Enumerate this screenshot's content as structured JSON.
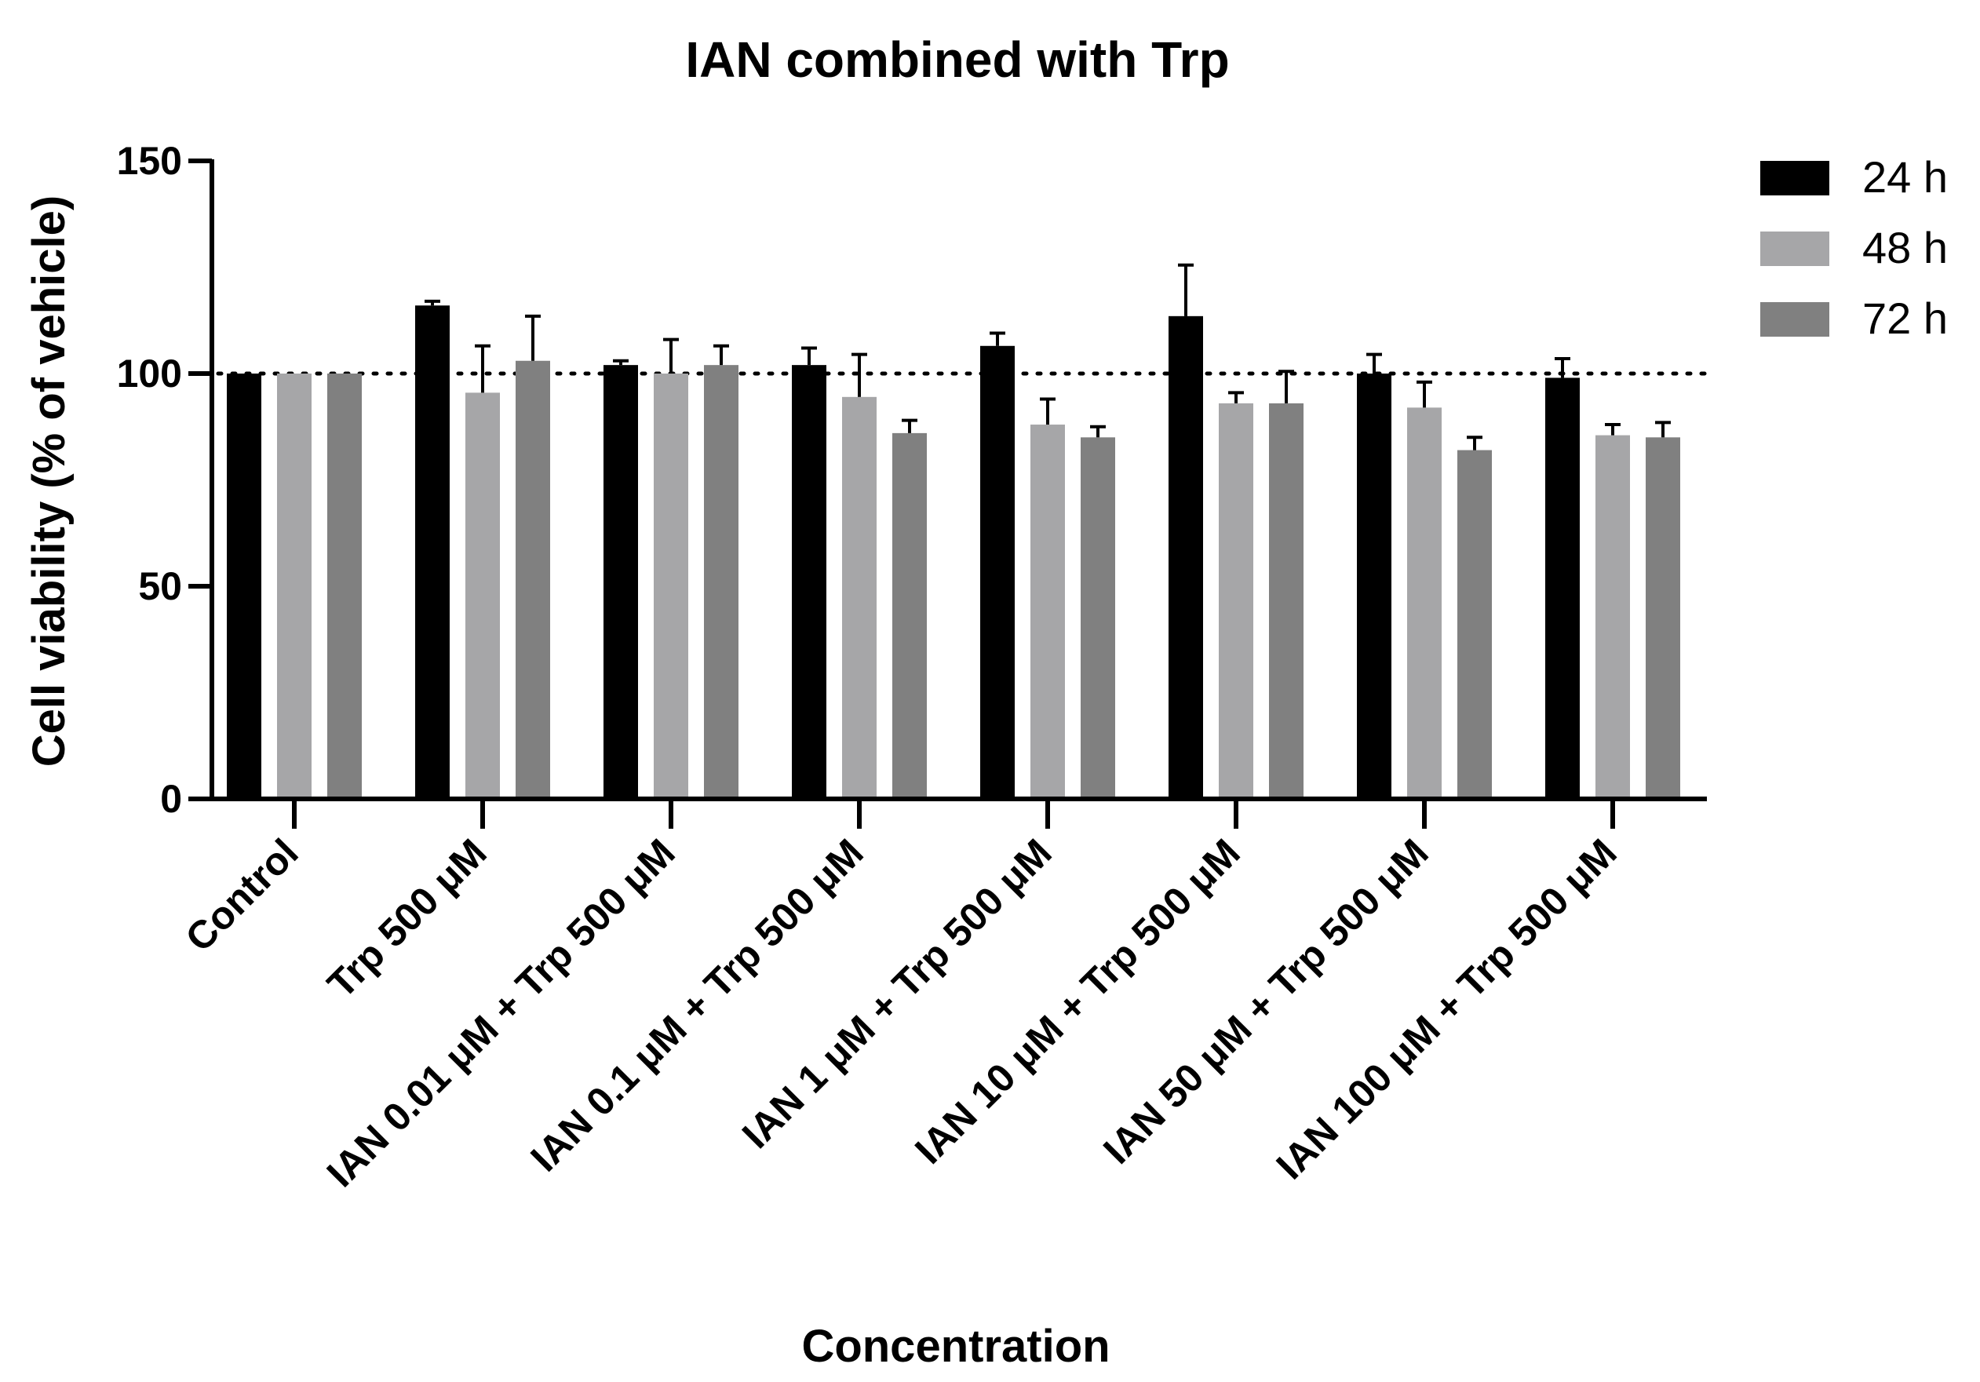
{
  "chart_data": {
    "type": "bar",
    "title": "IAN combined with Trp",
    "xlabel": "Concentration",
    "ylabel": "Cell viability (% of vehicle)",
    "ylim": [
      0,
      150
    ],
    "yticks": [
      0,
      50,
      100,
      150
    ],
    "reference_line": 100,
    "legend_position": "top-right",
    "categories": [
      "Control",
      "Trp 500 μM",
      "IAN 0.01 μM + Trp 500 μM",
      "IAN 0.1 μM + Trp 500 μM",
      "IAN 1 μM + Trp 500 μM",
      "IAN 10 μM + Trp 500 μM",
      "IAN 50 μM + Trp 500 μM",
      "IAN 100 μM + Trp 500 μM"
    ],
    "series": [
      {
        "name": "24 h",
        "color": "#000000",
        "values": [
          100,
          116,
          102,
          102,
          106.5,
          113.5,
          100,
          99
        ],
        "errors": [
          0,
          1,
          1,
          4,
          3,
          12,
          4.5,
          4.5
        ]
      },
      {
        "name": "48 h",
        "color": "#a6a6a8",
        "values": [
          100,
          95.5,
          100,
          94.5,
          88,
          93,
          92,
          85.5
        ],
        "errors": [
          0,
          11,
          8,
          10,
          6,
          2.5,
          6,
          2.5
        ]
      },
      {
        "name": "72 h",
        "color": "#808080",
        "values": [
          100,
          103,
          102,
          86,
          85,
          93,
          82,
          85
        ],
        "errors": [
          0,
          10.5,
          4.5,
          3,
          2.5,
          7.5,
          3,
          3.5
        ]
      }
    ]
  }
}
